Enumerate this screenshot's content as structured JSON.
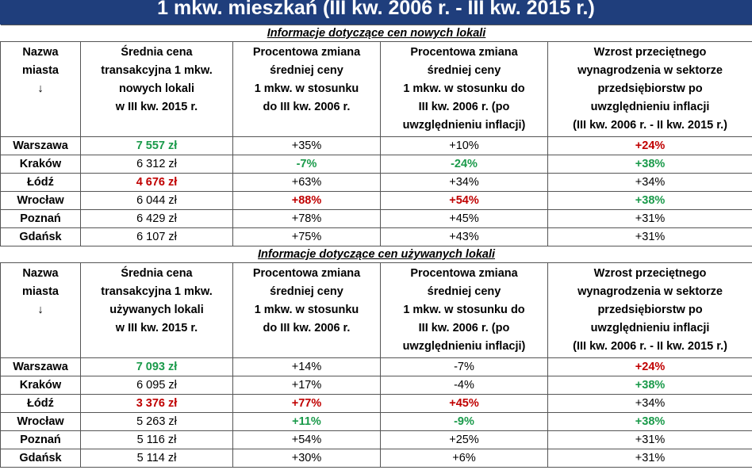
{
  "title": "1 mkw. mieszkań (III kw. 2006 r. - III kw. 2015 r.)",
  "colors": {
    "banner": "#1f3e7c",
    "green": "#1a9a4a",
    "red": "#c00000"
  },
  "sections": [
    {
      "title": "Informacje dotyczące cen nowych lokali",
      "headers": [
        [
          "Nazwa",
          "miasta",
          "↓"
        ],
        [
          "Średnia cena",
          "transakcyjna 1 mkw.",
          "nowych lokali",
          "w III kw. 2015 r."
        ],
        [
          "Procentowa zmiana",
          "średniej ceny",
          "1 mkw. w stosunku",
          "do III kw. 2006 r."
        ],
        [
          "Procentowa zmiana",
          "średniej ceny",
          "1 mkw. w stosunku do",
          "III kw. 2006 r. (po",
          "uwzględnieniu inflacji)"
        ],
        [
          "Wzrost przeciętnego",
          "wynagrodzenia w sektorze",
          "przedsiębiorstw po",
          "uwzględnieniu inflacji",
          "(III kw. 2006 r. - II kw. 2015 r.)"
        ]
      ],
      "rows": [
        {
          "city": "Warszawa",
          "cells": [
            {
              "v": "7 557 zł",
              "c": "green"
            },
            {
              "v": "+35%",
              "c": ""
            },
            {
              "v": "+10%",
              "c": ""
            },
            {
              "v": "+24%",
              "c": "red"
            }
          ]
        },
        {
          "city": "Kraków",
          "cells": [
            {
              "v": "6 312 zł",
              "c": ""
            },
            {
              "v": "-7%",
              "c": "green"
            },
            {
              "v": "-24%",
              "c": "green"
            },
            {
              "v": "+38%",
              "c": "green"
            }
          ]
        },
        {
          "city": "Łódź",
          "cells": [
            {
              "v": "4 676 zł",
              "c": "red"
            },
            {
              "v": "+63%",
              "c": ""
            },
            {
              "v": "+34%",
              "c": ""
            },
            {
              "v": "+34%",
              "c": ""
            }
          ]
        },
        {
          "city": "Wrocław",
          "cells": [
            {
              "v": "6 044 zł",
              "c": ""
            },
            {
              "v": "+88%",
              "c": "red"
            },
            {
              "v": "+54%",
              "c": "red"
            },
            {
              "v": "+38%",
              "c": "green"
            }
          ]
        },
        {
          "city": "Poznań",
          "cells": [
            {
              "v": "6 429 zł",
              "c": ""
            },
            {
              "v": "+78%",
              "c": ""
            },
            {
              "v": "+45%",
              "c": ""
            },
            {
              "v": "+31%",
              "c": ""
            }
          ]
        },
        {
          "city": "Gdańsk",
          "cells": [
            {
              "v": "6 107 zł",
              "c": ""
            },
            {
              "v": "+75%",
              "c": ""
            },
            {
              "v": "+43%",
              "c": ""
            },
            {
              "v": "+31%",
              "c": ""
            }
          ]
        }
      ]
    },
    {
      "title": "Informacje dotyczące cen używanych lokali",
      "headers": [
        [
          "Nazwa",
          "miasta",
          "↓"
        ],
        [
          "Średnia cena",
          "transakcyjna 1 mkw.",
          "używanych lokali",
          "w III kw. 2015 r."
        ],
        [
          "Procentowa zmiana",
          "średniej ceny",
          "1 mkw. w stosunku",
          "do III kw. 2006 r."
        ],
        [
          "Procentowa zmiana",
          "średniej ceny",
          "1 mkw. w stosunku do",
          "III kw. 2006 r. (po",
          "uwzględnieniu inflacji)"
        ],
        [
          "Wzrost przeciętnego",
          "wynagrodzenia w sektorze",
          "przedsiębiorstw po",
          "uwzględnieniu inflacji",
          "(III kw. 2006 r. - II kw. 2015 r.)"
        ]
      ],
      "rows": [
        {
          "city": "Warszawa",
          "cells": [
            {
              "v": "7 093 zł",
              "c": "green"
            },
            {
              "v": "+14%",
              "c": ""
            },
            {
              "v": "-7%",
              "c": ""
            },
            {
              "v": "+24%",
              "c": "red"
            }
          ]
        },
        {
          "city": "Kraków",
          "cells": [
            {
              "v": "6 095 zł",
              "c": ""
            },
            {
              "v": "+17%",
              "c": ""
            },
            {
              "v": "-4%",
              "c": ""
            },
            {
              "v": "+38%",
              "c": "green"
            }
          ]
        },
        {
          "city": "Łódź",
          "cells": [
            {
              "v": "3 376 zł",
              "c": "red"
            },
            {
              "v": "+77%",
              "c": "red"
            },
            {
              "v": "+45%",
              "c": "red"
            },
            {
              "v": "+34%",
              "c": ""
            }
          ]
        },
        {
          "city": "Wrocław",
          "cells": [
            {
              "v": "5 263 zł",
              "c": ""
            },
            {
              "v": "+11%",
              "c": "green"
            },
            {
              "v": "-9%",
              "c": "green"
            },
            {
              "v": "+38%",
              "c": "green"
            }
          ]
        },
        {
          "city": "Poznań",
          "cells": [
            {
              "v": "5 116 zł",
              "c": ""
            },
            {
              "v": "+54%",
              "c": ""
            },
            {
              "v": "+25%",
              "c": ""
            },
            {
              "v": "+31%",
              "c": ""
            }
          ]
        },
        {
          "city": "Gdańsk",
          "cells": [
            {
              "v": "5 114 zł",
              "c": ""
            },
            {
              "v": "+30%",
              "c": ""
            },
            {
              "v": "+6%",
              "c": ""
            },
            {
              "v": "+31%",
              "c": ""
            }
          ]
        }
      ]
    }
  ]
}
